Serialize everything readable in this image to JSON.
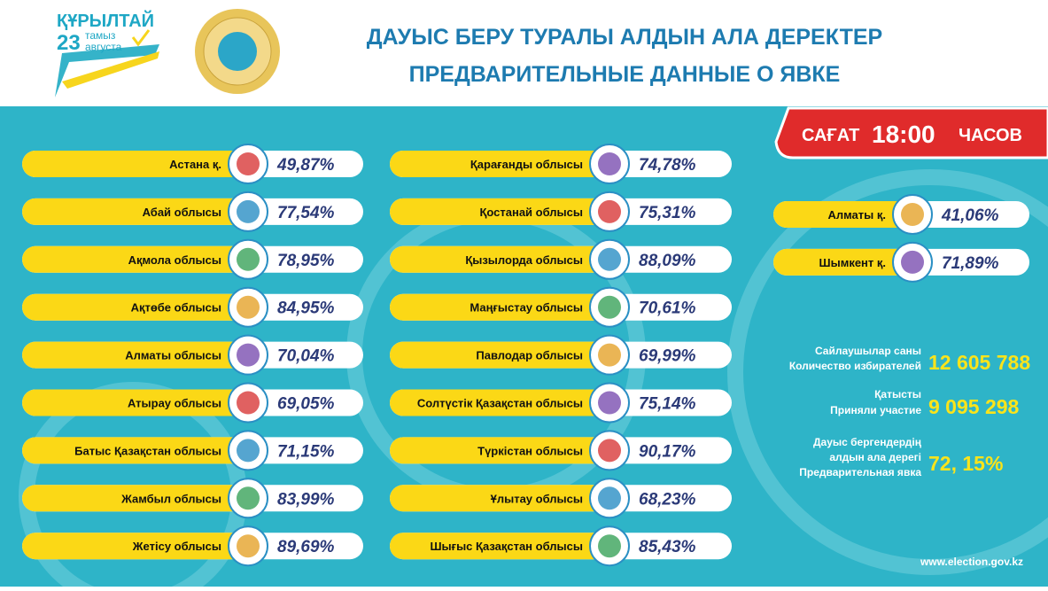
{
  "header": {
    "logo": {
      "title": "ҚҰРЫЛТАЙ",
      "day": "23",
      "month_kz": "тамыз",
      "month_ru": "августа"
    },
    "title_kz": "ДАУЫС БЕРУ ТУРАЛЫ АЛДЫН АЛА ДЕРЕКТЕР",
    "title_ru": "ПРЕДВАРИТЕЛЬНЫЕ ДАННЫЕ О ЯВКЕ"
  },
  "time_badge": {
    "label_kz": "САҒАТ",
    "time": "18:00",
    "label_ru": "ЧАСОВ"
  },
  "columns": [
    [
      {
        "name": "Астана  қ.",
        "value": "49,87%"
      },
      {
        "name": "Абай облысы",
        "value": "77,54%"
      },
      {
        "name": "Ақмола облысы",
        "value": "78,95%"
      },
      {
        "name": "Ақтөбе облысы",
        "value": "84,95%"
      },
      {
        "name": "Алматы облысы",
        "value": "70,04%"
      },
      {
        "name": "Атырау  облысы",
        "value": "69,05%"
      },
      {
        "name": "Батыс Қазақстан облысы",
        "value": "71,15%"
      },
      {
        "name": "Жамбыл облысы",
        "value": "83,99%"
      },
      {
        "name": "Жетісу облысы",
        "value": "89,69%"
      }
    ],
    [
      {
        "name": "Қарағанды облысы",
        "value": "74,78%"
      },
      {
        "name": "Қостанай облысы",
        "value": "75,31%"
      },
      {
        "name": "Қызылорда облысы",
        "value": "88,09%"
      },
      {
        "name": "Маңғыстау облысы",
        "value": "70,61%"
      },
      {
        "name": "Павлодар облысы",
        "value": "69,99%"
      },
      {
        "name": "Солтүстік Қазақстан облысы",
        "value": "75,14%"
      },
      {
        "name": "Түркістан облысы",
        "value": "90,17%"
      },
      {
        "name": "Ұлытау облысы",
        "value": "68,23%"
      },
      {
        "name": "Шығыс Қазақстан облысы",
        "value": "85,43%"
      }
    ],
    [
      {
        "name": "Алматы қ.",
        "value": "41,06%"
      },
      {
        "name": "Шымкент қ.",
        "value": "71,89%"
      }
    ]
  ],
  "stats": [
    {
      "lines": [
        "Сайлаушылар саны",
        "Количество избирателей"
      ],
      "value": "12 605 788"
    },
    {
      "lines": [
        "Қатысты",
        "Приняли участие"
      ],
      "value": "9 095 298"
    },
    {
      "lines": [
        "Дауыс бергендердің",
        "алдын ала дерегі",
        "Предварительная явка"
      ],
      "value": "72, 15%"
    }
  ],
  "footer": "www.election.gov.kz"
}
